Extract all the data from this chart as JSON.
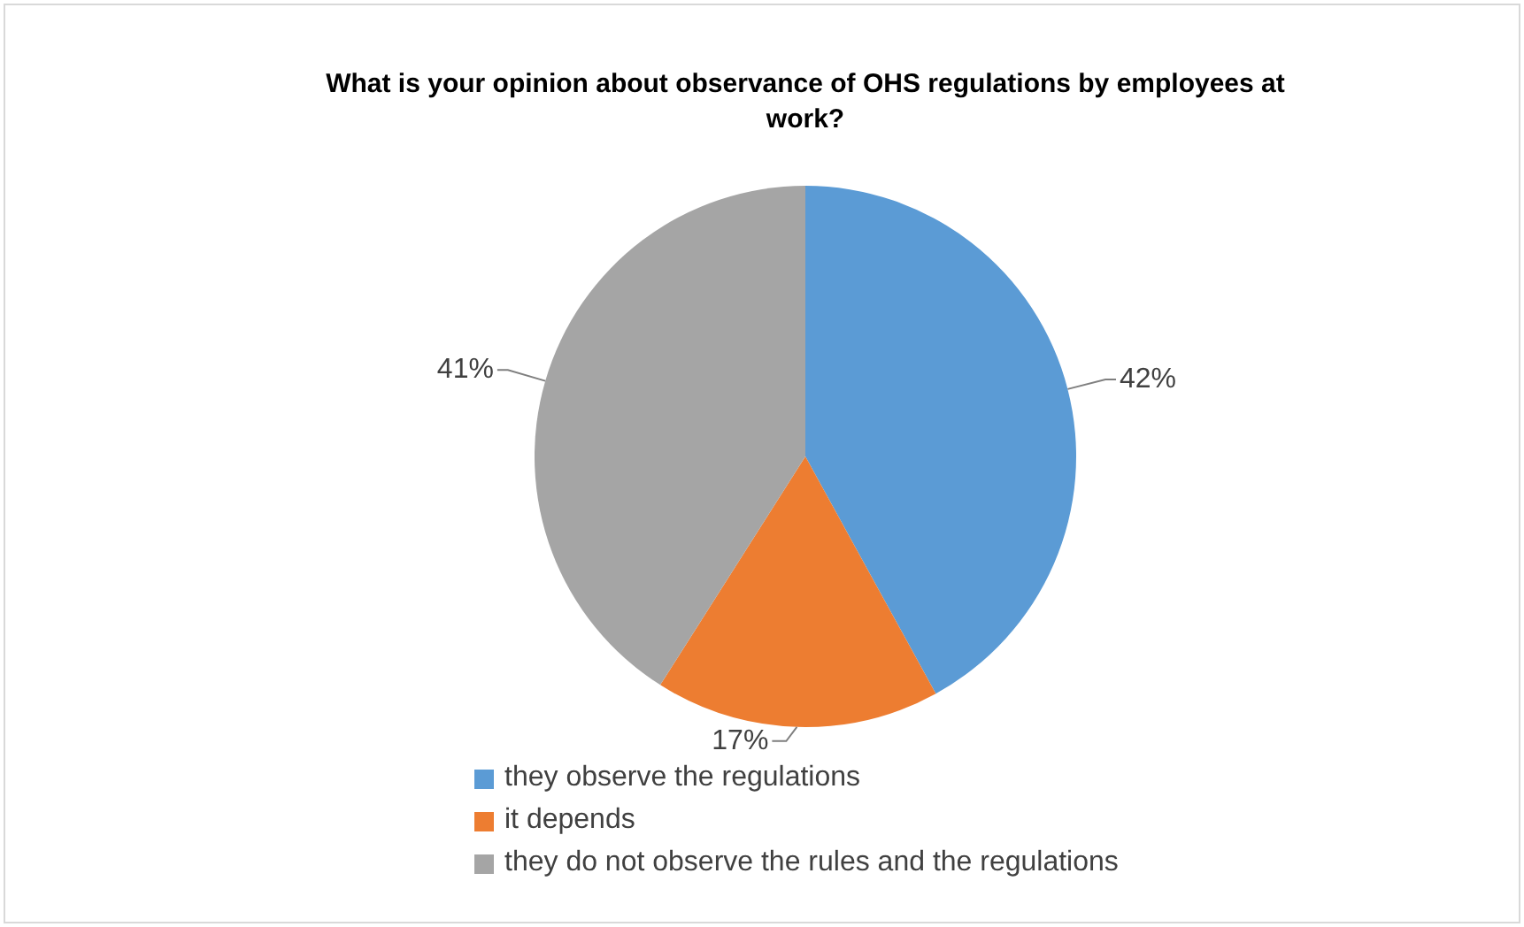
{
  "chart_data": {
    "type": "pie",
    "title": "What is your opinion  about observance of OHS regulations by employees at work?",
    "categories": [
      "they observe the regulations",
      "it depends",
      "they do not observe the rules and the regulations"
    ],
    "values": [
      42,
      17,
      41
    ],
    "colors": [
      "#5b9bd5",
      "#ed7d31",
      "#a5a5a5"
    ],
    "value_labels": [
      "42%",
      "17%",
      "41%"
    ],
    "legend": "bottom left"
  }
}
